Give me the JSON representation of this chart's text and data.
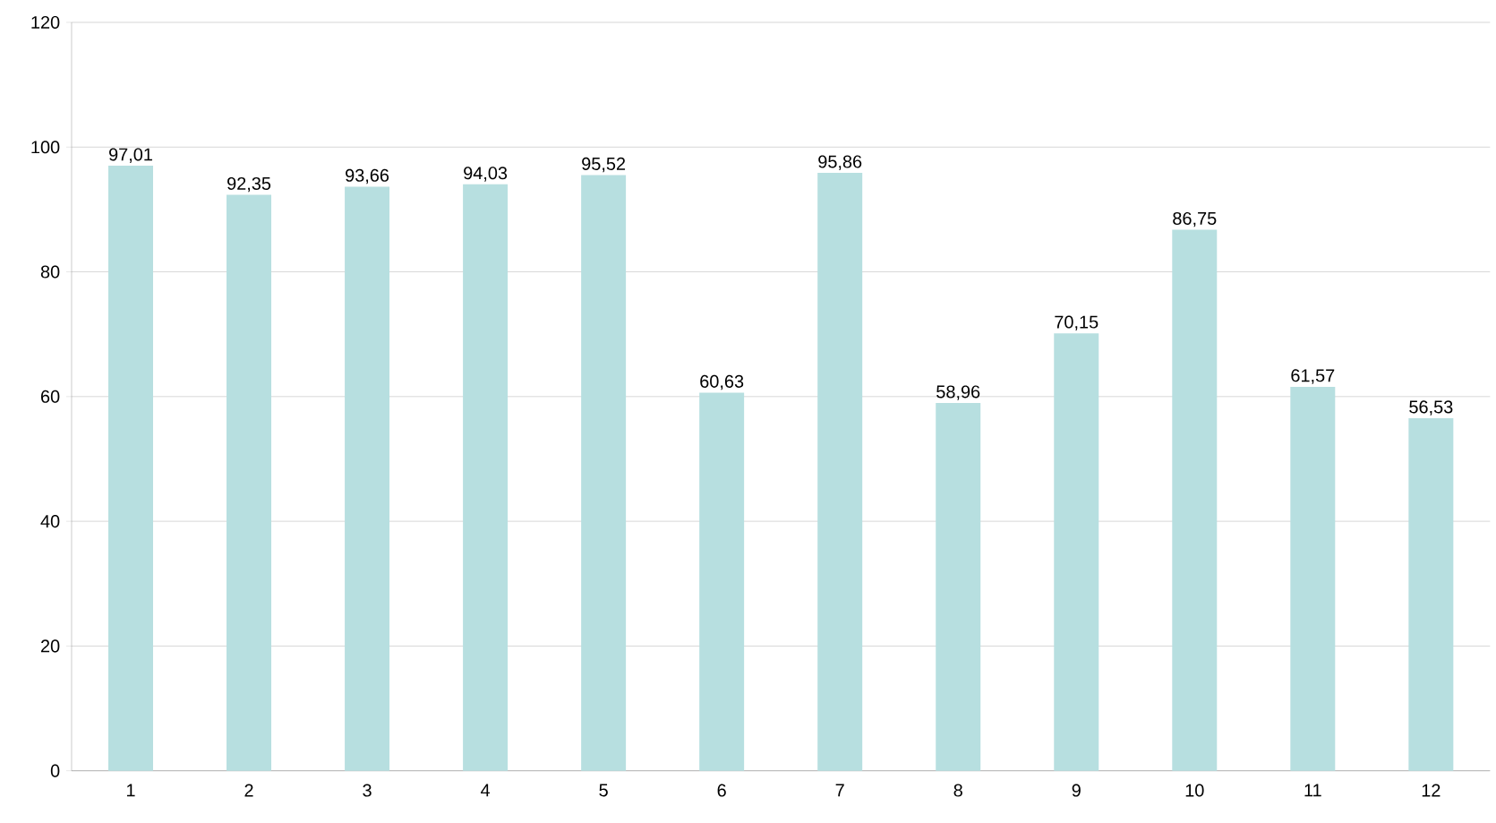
{
  "chart_data": {
    "type": "bar",
    "categories": [
      "1",
      "2",
      "3",
      "4",
      "5",
      "6",
      "7",
      "8",
      "9",
      "10",
      "11",
      "12"
    ],
    "values": [
      97.01,
      92.35,
      93.66,
      94.03,
      95.52,
      60.63,
      95.86,
      58.96,
      70.15,
      86.75,
      61.57,
      56.53
    ],
    "value_labels": [
      "97,01",
      "92,35",
      "93,66",
      "94,03",
      "95,52",
      "60,63",
      "95,86",
      "58,96",
      "70,15",
      "86,75",
      "61,57",
      "56,53"
    ],
    "color": "#b7dfe0",
    "ylim": [
      0,
      120
    ],
    "yticks": [
      0,
      20,
      40,
      60,
      80,
      100,
      120
    ],
    "grid": "y"
  }
}
